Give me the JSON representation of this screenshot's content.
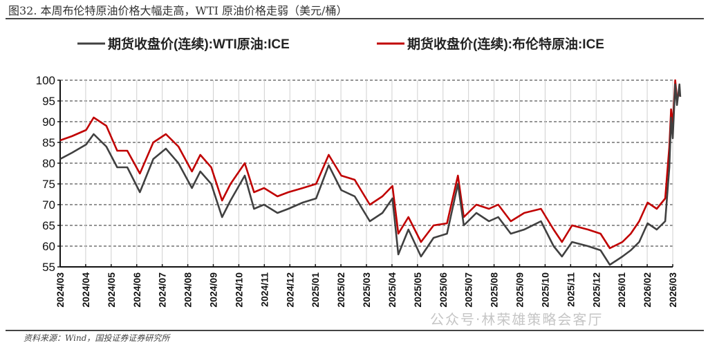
{
  "title": "图32. 本周布伦特原油价格大幅走高，WTI 原油价格走弱（美元/桶）",
  "source": "资料来源：Wind，国投证券证券研究所",
  "watermark": "公众号·林荣雄策略会客厅",
  "chart_data": {
    "type": "line",
    "title": "",
    "xlabel": "",
    "ylabel": "",
    "ylim": [
      55,
      100
    ],
    "yticks": [
      55,
      60,
      65,
      70,
      75,
      80,
      85,
      90,
      95,
      100
    ],
    "xticks": [
      "2024/03",
      "2024/04",
      "2024/05",
      "2024/06",
      "2024/07",
      "2024/08",
      "2024/09",
      "2024/10",
      "2024/11",
      "2024/12",
      "2025/01",
      "2025/02",
      "2025/03",
      "2025/04",
      "2025/05",
      "2025/06",
      "2025/07",
      "2025/08",
      "2025/09",
      "2025/10",
      "2025/11",
      "2025/12",
      "2026/01",
      "2026/02",
      "2026/03"
    ],
    "grid": true,
    "legend_position": "top",
    "x": [
      "2024-03-01",
      "2024-03-15",
      "2024-04-01",
      "2024-04-10",
      "2024-04-25",
      "2024-05-08",
      "2024-05-20",
      "2024-06-04",
      "2024-06-20",
      "2024-07-05",
      "2024-07-20",
      "2024-08-05",
      "2024-08-15",
      "2024-08-28",
      "2024-09-10",
      "2024-09-20",
      "2024-10-07",
      "2024-10-18",
      "2024-10-30",
      "2024-11-15",
      "2024-11-28",
      "2024-12-15",
      "2024-12-31",
      "2025-01-15",
      "2025-01-30",
      "2025-02-15",
      "2025-03-05",
      "2025-03-20",
      "2025-04-01",
      "2025-04-08",
      "2025-04-20",
      "2025-05-05",
      "2025-05-20",
      "2025-06-05",
      "2025-06-18",
      "2025-06-25",
      "2025-07-10",
      "2025-07-25",
      "2025-08-05",
      "2025-08-20",
      "2025-09-05",
      "2025-09-25",
      "2025-10-10",
      "2025-10-20",
      "2025-11-01",
      "2025-11-20",
      "2025-12-05",
      "2025-12-16",
      "2025-12-31",
      "2026-01-10",
      "2026-01-20",
      "2026-01-30",
      "2026-02-10",
      "2026-02-20",
      "2026-02-25",
      "2026-02-27",
      "2026-03-01",
      "2026-03-04",
      "2026-03-06",
      "2026-03-09",
      "2026-03-10"
    ],
    "series": [
      {
        "name": "期货收盘价(连续):WTI原油:ICE",
        "color": "#404040",
        "values": [
          81,
          82.5,
          84.5,
          87,
          84,
          79,
          79,
          73,
          81,
          83.5,
          80,
          74,
          78,
          75,
          67,
          71,
          77,
          69,
          70,
          68,
          69,
          70.5,
          71.5,
          79.5,
          73.5,
          72,
          66,
          68,
          71.5,
          58,
          64,
          57.5,
          62,
          63,
          75,
          65,
          68,
          66,
          67,
          63,
          64,
          66,
          60,
          57.5,
          61,
          60,
          59,
          55.5,
          57.5,
          59,
          61,
          65.5,
          64,
          66,
          79,
          91,
          86,
          99,
          94,
          99,
          96
        ]
      },
      {
        "name": "期货收盘价(连续):布伦特原油:ICE",
        "color": "#c00000",
        "values": [
          85.5,
          86.5,
          88,
          91,
          89,
          83,
          83,
          77.5,
          85,
          87,
          84,
          78,
          82,
          79,
          71,
          75,
          80,
          73,
          74,
          72,
          73,
          74,
          75,
          82,
          77,
          76,
          70,
          72,
          74.5,
          63,
          67,
          61,
          65,
          65.5,
          77,
          67,
          70,
          69,
          70,
          66,
          68,
          69,
          64,
          61,
          65,
          64,
          63,
          59.5,
          61,
          63,
          66,
          70.5,
          69,
          71.5,
          84,
          93,
          89,
          100,
          95.5,
          97,
          96
        ]
      }
    ]
  }
}
